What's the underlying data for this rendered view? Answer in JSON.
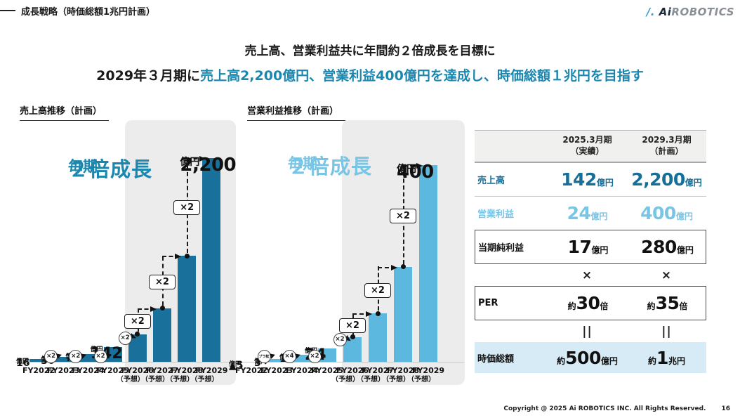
{
  "page": {
    "header": "成長戦略（時価総額1兆円計画）",
    "logo": {
      "mark": "/.",
      "text1": "Ai",
      "text2": "ROBOTICS"
    },
    "title_line1": "売上高、営業利益共に年間約２倍成長を目標に",
    "title_line2_black": "2029年３月期に",
    "title_line2_teal": "売上高2,200億円、営業利益400億円を達成し、時価総額１兆円を目指す",
    "footer": {
      "copyright": "Copyright @ 2025 Ai ROBOTICS INC. All Rights Reserved.",
      "page_number": "16"
    }
  },
  "colors": {
    "dark_teal": "#19719b",
    "light_blue": "#5cb8de",
    "title_teal": "#1b87ae",
    "light_blue_text": "#79c5e5",
    "panel_gray": "#ececec",
    "table_highlight": "#d6ebf5"
  },
  "chart_data": [
    {
      "type": "bar",
      "title": "売上高推移（計画）",
      "ylabel": "売上高",
      "unit": "億円",
      "categories": [
        "FY2022",
        "FY2023",
        "FY2024",
        "FY2025",
        "FY2026",
        "FY2027",
        "FY2028",
        "FY2029"
      ],
      "category_notes": [
        "",
        "",
        "",
        "",
        "（予想）",
        "（予想）",
        "（予想）",
        "（予想）"
      ],
      "values": [
        16,
        36,
        70,
        142,
        284,
        568,
        1136,
        2200
      ],
      "values_note": "FY2026-FY2028 not labeled; estimated from ×2 yearly doubling",
      "bar_value_labels": [
        "16",
        "36",
        "70",
        "142"
      ],
      "top_label": {
        "num": "2,200",
        "unit": "億円"
      },
      "growth_label": {
        "line1": "毎期",
        "line2": "２倍成長"
      },
      "circle_annotations": [
        "×2",
        "×2",
        "×2",
        "×2"
      ],
      "box_annotations": [
        "×2",
        "×2",
        "×2"
      ],
      "bar_color": "#19719b",
      "growth_color": "#1b87ae",
      "ylim": [
        0,
        2200
      ],
      "grid": false,
      "legend": false
    },
    {
      "type": "bar",
      "title": "営業利益推移（計画）",
      "ylabel": "営業利益",
      "unit": "億円",
      "categories": [
        "FY2022",
        "FY2023",
        "FY2024",
        "FY2025",
        "FY2026",
        "FY2027",
        "FY2028",
        "FY2029"
      ],
      "category_notes": [
        "",
        "",
        "",
        "",
        "（予想）",
        "（予想）",
        "（予想）",
        "（予想）"
      ],
      "values": [
        -5,
        3,
        12,
        24,
        48,
        96,
        192,
        400
      ],
      "values_note": "FY2026-FY2028 not labeled; estimated from ×2 yearly doubling; FY2022 is a ▲5 loss",
      "bar_value_labels": [
        "▲5",
        "3",
        "12",
        "24"
      ],
      "top_label": {
        "num": "400",
        "unit": "億円"
      },
      "growth_label": {
        "line1": "毎期",
        "line2": "２倍成長"
      },
      "circle_annotations": [
        "プラ転",
        "×4",
        "×2",
        "×2"
      ],
      "box_annotations": [
        "×2",
        "×2",
        "×2"
      ],
      "bar_color": "#5cb8de",
      "growth_color": "#79c5e5",
      "ylim": [
        -5,
        400
      ],
      "grid": false,
      "legend": false
    }
  ],
  "table": {
    "header": {
      "col1_line1": "2025.3月期",
      "col1_line2": "（実績）",
      "col2_line1": "2029.3月期",
      "col2_line2": "（計画）"
    },
    "rows": [
      {
        "label": "売上高",
        "values": [
          {
            "pre": "",
            "num": "142",
            "unit": "億円"
          },
          {
            "pre": "",
            "num": "2,200",
            "unit": "億円"
          }
        ]
      },
      {
        "label": "営業利益",
        "values": [
          {
            "pre": "",
            "num": "24",
            "unit": "億円"
          },
          {
            "pre": "",
            "num": "400",
            "unit": "億円"
          }
        ]
      },
      {
        "label": "当期純利益",
        "values": [
          {
            "pre": "",
            "num": "17",
            "unit": "億円"
          },
          {
            "pre": "",
            "num": "280",
            "unit": "億円"
          }
        ]
      },
      {
        "operator": "×"
      },
      {
        "label": "PER",
        "values": [
          {
            "pre": "約",
            "num": "30",
            "unit": "倍"
          },
          {
            "pre": "約",
            "num": "35",
            "unit": "倍"
          }
        ]
      },
      {
        "operator": "||"
      },
      {
        "label": "時価総額",
        "values": [
          {
            "pre": "約",
            "num": "500",
            "unit": "億円"
          },
          {
            "pre": "約",
            "num": "1",
            "unit": "兆円"
          }
        ]
      }
    ]
  }
}
